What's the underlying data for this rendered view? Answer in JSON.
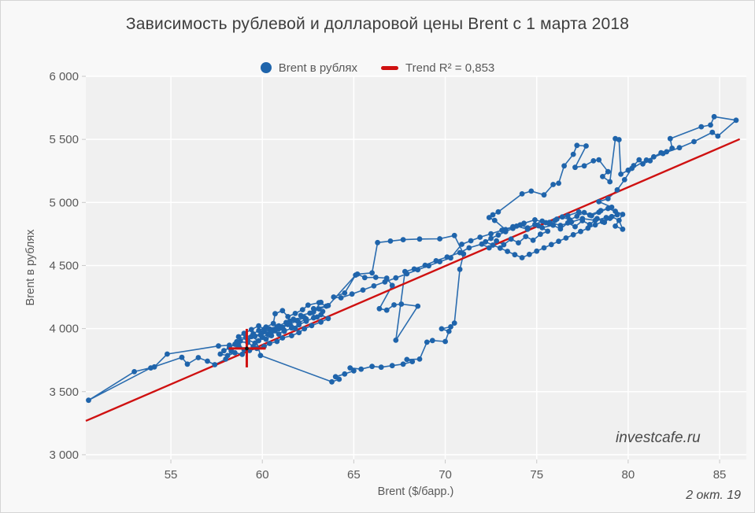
{
  "title": "Зависимость рублевой и долларовой цены Brent с 1 марта 2018",
  "legend": {
    "series_label": "Brent в рублях",
    "trend_label": "Trend R² = 0,853"
  },
  "watermark": "investcafe.ru",
  "date_label": "2 окт. 19",
  "colors": {
    "series": "#1f64ab",
    "trend": "#cf1111",
    "cross": "#cf1111",
    "cross_center": "#111111",
    "plot_bg": "#f0f0f0",
    "page_bg": "#f8f8f8",
    "grid": "#ffffff",
    "tick": "#c9c9c9",
    "text": "#595959",
    "title_text": "#3d3d3d"
  },
  "chart_data": {
    "type": "scatter",
    "title": "Зависимость рублевой и долларовой цены Brent с 1 марта 2018",
    "xlabel": "Brent ($/барр.)",
    "ylabel": "Brent в рублях",
    "xlim": [
      50.35,
      86.46
    ],
    "ylim": [
      2962,
      6000
    ],
    "x_ticks": [
      55,
      60,
      65,
      70,
      75,
      80,
      85
    ],
    "y_ticks": [
      {
        "value": 3000,
        "label": "3 000"
      },
      {
        "value": 3500,
        "label": "3 500"
      },
      {
        "value": 4000,
        "label": "4 000"
      },
      {
        "value": 4500,
        "label": "4 500"
      },
      {
        "value": 5000,
        "label": "5 000"
      },
      {
        "value": 5500,
        "label": "5 500"
      },
      {
        "value": 6000,
        "label": "6 000"
      }
    ],
    "grid": true,
    "legend_position": "top-center",
    "series": [
      {
        "name": "Brent в рублях",
        "color": "#1f64ab",
        "connected": true,
        "marker": "circle",
        "points": [
          [
            58.2,
            3868
          ],
          [
            57.6,
            3862
          ],
          [
            54.8,
            3798
          ],
          [
            54.1,
            3696
          ],
          [
            53.0,
            3658
          ],
          [
            50.5,
            3432
          ],
          [
            53.9,
            3688
          ],
          [
            55.6,
            3772
          ],
          [
            55.9,
            3718
          ],
          [
            56.5,
            3770
          ],
          [
            57.0,
            3742
          ],
          [
            57.4,
            3714
          ],
          [
            58.0,
            3758
          ],
          [
            58.3,
            3822
          ],
          [
            58.7,
            3868
          ],
          [
            59.0,
            3832
          ],
          [
            58.6,
            3896
          ],
          [
            59.2,
            3890
          ],
          [
            59.5,
            3858
          ],
          [
            59.8,
            3904
          ],
          [
            59.4,
            3936
          ],
          [
            59.9,
            3948
          ],
          [
            60.2,
            3916
          ],
          [
            60.5,
            3944
          ],
          [
            60.1,
            3976
          ],
          [
            60.6,
            3992
          ],
          [
            60.9,
            3956
          ],
          [
            61.2,
            3986
          ],
          [
            60.8,
            4014
          ],
          [
            61.4,
            4032
          ],
          [
            61.8,
            4002
          ],
          [
            61.5,
            4058
          ],
          [
            62.0,
            4046
          ],
          [
            62.4,
            4076
          ],
          [
            62.1,
            4104
          ],
          [
            62.6,
            4122
          ],
          [
            63.0,
            4092
          ],
          [
            63.3,
            4136
          ],
          [
            62.8,
            4158
          ],
          [
            63.5,
            4178
          ],
          [
            63.1,
            4206
          ],
          [
            62.5,
            4186
          ],
          [
            62.2,
            4150
          ],
          [
            61.8,
            4120
          ],
          [
            61.4,
            4095
          ],
          [
            61.1,
            4142
          ],
          [
            60.7,
            4118
          ],
          [
            60.6,
            4040
          ],
          [
            60.2,
            4012
          ],
          [
            59.8,
            3985
          ],
          [
            59.5,
            3958
          ],
          [
            59.1,
            3930
          ],
          [
            58.8,
            3902
          ],
          [
            58.5,
            3876
          ],
          [
            58.2,
            3850
          ],
          [
            57.9,
            3825
          ],
          [
            57.7,
            3798
          ],
          [
            58.1,
            3786
          ],
          [
            58.5,
            3808
          ],
          [
            58.9,
            3796
          ],
          [
            59.3,
            3826
          ],
          [
            59.7,
            3843
          ],
          [
            60.1,
            3858
          ],
          [
            60.4,
            3882
          ],
          [
            60.8,
            3898
          ],
          [
            61.1,
            3926
          ],
          [
            61.6,
            3944
          ],
          [
            62.0,
            3968
          ],
          [
            62.3,
            3998
          ],
          [
            62.7,
            4024
          ],
          [
            63.2,
            4052
          ],
          [
            63.6,
            4080
          ],
          [
            63.2,
            4110
          ],
          [
            62.8,
            4085
          ],
          [
            62.4,
            4058
          ],
          [
            62.0,
            4030
          ],
          [
            61.6,
            4005
          ],
          [
            61.2,
            3978
          ],
          [
            60.9,
            3998
          ],
          [
            60.5,
            3970
          ],
          [
            60.1,
            3995
          ],
          [
            59.8,
            4022
          ],
          [
            59.4,
            3992
          ],
          [
            59.0,
            3962
          ],
          [
            58.7,
            3935
          ],
          [
            59.2,
            3912
          ],
          [
            59.6,
            3885
          ],
          [
            60.0,
            3930
          ],
          [
            60.3,
            3955
          ],
          [
            60.7,
            3982
          ],
          [
            61.1,
            4008
          ],
          [
            61.5,
            4035
          ],
          [
            61.9,
            4062
          ],
          [
            62.3,
            4088
          ],
          [
            61.7,
            4075
          ],
          [
            61.3,
            4048
          ],
          [
            60.9,
            4022
          ],
          [
            60.4,
            3996
          ],
          [
            60.0,
            3968
          ],
          [
            59.6,
            3940
          ],
          [
            59.9,
            3787
          ],
          [
            63.8,
            3578
          ],
          [
            64.2,
            3598
          ],
          [
            64.0,
            3618
          ],
          [
            64.5,
            3640
          ],
          [
            65.0,
            3665
          ],
          [
            64.8,
            3688
          ],
          [
            65.4,
            3678
          ],
          [
            66.0,
            3700
          ],
          [
            66.5,
            3694
          ],
          [
            67.1,
            3706
          ],
          [
            67.7,
            3718
          ],
          [
            68.2,
            3738
          ],
          [
            67.9,
            3755
          ],
          [
            68.6,
            3758
          ],
          [
            69.0,
            3892
          ],
          [
            69.3,
            3905
          ],
          [
            70.0,
            3898
          ],
          [
            70.2,
            3978
          ],
          [
            69.8,
            3998
          ],
          [
            70.3,
            4014
          ],
          [
            70.5,
            4044
          ],
          [
            70.8,
            4470
          ],
          [
            71.0,
            4592
          ],
          [
            70.5,
            4738
          ],
          [
            69.7,
            4712
          ],
          [
            68.6,
            4710
          ],
          [
            67.7,
            4705
          ],
          [
            67.0,
            4694
          ],
          [
            66.3,
            4682
          ],
          [
            66.0,
            4442
          ],
          [
            65.2,
            4432
          ],
          [
            65.6,
            4404
          ],
          [
            66.2,
            4406
          ],
          [
            66.8,
            4400
          ],
          [
            67.1,
            4342
          ],
          [
            66.4,
            4158
          ],
          [
            66.8,
            4146
          ],
          [
            67.2,
            4188
          ],
          [
            67.6,
            4194
          ],
          [
            68.5,
            4178
          ],
          [
            67.3,
            3908
          ],
          [
            67.8,
            4452
          ],
          [
            68.3,
            4472
          ],
          [
            68.9,
            4502
          ],
          [
            69.5,
            4538
          ],
          [
            70.1,
            4568
          ],
          [
            70.8,
            4602
          ],
          [
            71.3,
            4640
          ],
          [
            72.0,
            4670
          ],
          [
            72.4,
            4640
          ],
          [
            72.8,
            4695
          ],
          [
            73.2,
            4665
          ],
          [
            73.6,
            4710
          ],
          [
            74.0,
            4680
          ],
          [
            74.4,
            4730
          ],
          [
            74.8,
            4700
          ],
          [
            75.2,
            4748
          ],
          [
            75.6,
            4772
          ],
          [
            75.3,
            4800
          ],
          [
            75.9,
            4820
          ],
          [
            76.3,
            4790
          ],
          [
            76.7,
            4838
          ],
          [
            77.1,
            4808
          ],
          [
            77.5,
            4855
          ],
          [
            77.9,
            4825
          ],
          [
            78.3,
            4872
          ],
          [
            78.7,
            4842
          ],
          [
            79.1,
            4888
          ],
          [
            79.5,
            4858
          ],
          [
            79.7,
            4788
          ],
          [
            79.3,
            4812
          ],
          [
            79.7,
            4905
          ],
          [
            79.3,
            4930
          ],
          [
            78.9,
            4952
          ],
          [
            78.4,
            4922
          ],
          [
            78.0,
            4895
          ],
          [
            77.6,
            4920
          ],
          [
            77.2,
            4890
          ],
          [
            76.8,
            4862
          ],
          [
            76.4,
            4885
          ],
          [
            76.0,
            4858
          ],
          [
            75.7,
            4830
          ],
          [
            75.3,
            4852
          ],
          [
            74.9,
            4825
          ],
          [
            74.5,
            4798
          ],
          [
            74.1,
            4822
          ],
          [
            73.7,
            4795
          ],
          [
            73.3,
            4768
          ],
          [
            72.9,
            4742
          ],
          [
            72.5,
            4715
          ],
          [
            72.2,
            4688
          ],
          [
            72.6,
            4662
          ],
          [
            73.0,
            4638
          ],
          [
            73.4,
            4612
          ],
          [
            73.8,
            4586
          ],
          [
            74.2,
            4562
          ],
          [
            74.6,
            4588
          ],
          [
            75.0,
            4614
          ],
          [
            75.4,
            4640
          ],
          [
            75.8,
            4666
          ],
          [
            76.2,
            4692
          ],
          [
            76.6,
            4718
          ],
          [
            77.0,
            4744
          ],
          [
            77.4,
            4770
          ],
          [
            77.8,
            4796
          ],
          [
            78.2,
            4822
          ],
          [
            78.6,
            4848
          ],
          [
            79.0,
            4874
          ],
          [
            79.4,
            4902
          ],
          [
            78.8,
            4880
          ],
          [
            78.2,
            4858
          ],
          [
            77.5,
            4872
          ],
          [
            76.9,
            4845
          ],
          [
            76.3,
            4818
          ],
          [
            75.7,
            4842
          ],
          [
            75.1,
            4815
          ],
          [
            74.5,
            4788
          ],
          [
            73.9,
            4812
          ],
          [
            73.3,
            4785
          ],
          [
            72.7,
            4858
          ],
          [
            72.4,
            4880
          ],
          [
            72.6,
            4902
          ],
          [
            72.9,
            4925
          ],
          [
            74.2,
            5068
          ],
          [
            74.7,
            5090
          ],
          [
            75.4,
            5060
          ],
          [
            75.9,
            5142
          ],
          [
            76.2,
            5152
          ],
          [
            76.5,
            5290
          ],
          [
            77.0,
            5382
          ],
          [
            77.2,
            5452
          ],
          [
            77.7,
            5448
          ],
          [
            77.1,
            5278
          ],
          [
            77.6,
            5290
          ],
          [
            78.1,
            5330
          ],
          [
            78.4,
            5338
          ],
          [
            78.9,
            5244
          ],
          [
            78.6,
            5205
          ],
          [
            79.0,
            5164
          ],
          [
            79.3,
            5506
          ],
          [
            79.5,
            5498
          ],
          [
            79.6,
            5224
          ],
          [
            80.0,
            5256
          ],
          [
            80.3,
            5292
          ],
          [
            80.6,
            5338
          ],
          [
            80.8,
            5306
          ],
          [
            81.2,
            5330
          ],
          [
            81.4,
            5362
          ],
          [
            81.8,
            5394
          ],
          [
            82.1,
            5402
          ],
          [
            82.4,
            5430
          ],
          [
            82.3,
            5506
          ],
          [
            84.0,
            5600
          ],
          [
            84.5,
            5614
          ],
          [
            84.7,
            5680
          ],
          [
            85.9,
            5652
          ],
          [
            84.9,
            5526
          ],
          [
            84.6,
            5556
          ],
          [
            83.6,
            5482
          ],
          [
            82.8,
            5434
          ],
          [
            81.9,
            5388
          ],
          [
            81.0,
            5336
          ],
          [
            80.2,
            5270
          ],
          [
            79.8,
            5180
          ],
          [
            79.4,
            5100
          ],
          [
            78.9,
            5030
          ],
          [
            78.4,
            5006
          ],
          [
            79.1,
            4962
          ],
          [
            78.5,
            4935
          ],
          [
            77.9,
            4900
          ],
          [
            77.3,
            4925
          ],
          [
            76.7,
            4895
          ],
          [
            76.1,
            4868
          ],
          [
            75.5,
            4840
          ],
          [
            74.9,
            4862
          ],
          [
            74.3,
            4835
          ],
          [
            73.7,
            4808
          ],
          [
            73.1,
            4780
          ],
          [
            72.5,
            4752
          ],
          [
            71.9,
            4724
          ],
          [
            71.4,
            4696
          ],
          [
            70.9,
            4668
          ],
          [
            70.3,
            4560
          ],
          [
            69.7,
            4530
          ],
          [
            69.1,
            4498
          ],
          [
            68.5,
            4466
          ],
          [
            67.9,
            4434
          ],
          [
            67.3,
            4402
          ],
          [
            66.7,
            4370
          ],
          [
            66.1,
            4338
          ],
          [
            65.5,
            4306
          ],
          [
            64.9,
            4274
          ],
          [
            64.3,
            4244
          ],
          [
            63.9,
            4250
          ],
          [
            64.5,
            4282
          ],
          [
            65.1,
            4424
          ],
          [
            63.6,
            4182
          ],
          [
            63.1,
            4156
          ],
          [
            62.8,
            4132
          ],
          [
            63.2,
            4208
          ]
        ]
      }
    ],
    "trend": {
      "name": "Trend R² = 0,853",
      "r_squared": "0,853",
      "color": "#cf1111",
      "from": [
        50.35,
        3268
      ],
      "to": [
        86.1,
        5502
      ]
    },
    "highlight_cross": {
      "x": 59.15,
      "y": 3842,
      "color": "#cf1111"
    }
  }
}
